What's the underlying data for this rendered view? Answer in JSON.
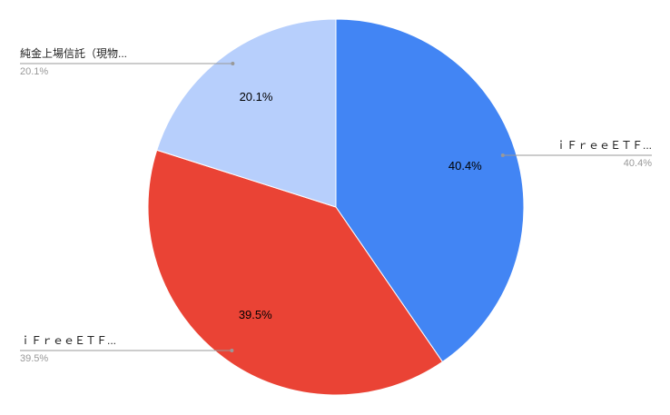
{
  "chart_data": {
    "type": "pie",
    "categories": [
      "ｉＦｒｅｅＥＴＦ...",
      "ｉＦｒｅｅＥＴＦ...",
      "純金上場信託（現物..."
    ],
    "values": [
      40.4,
      39.5,
      20.1
    ],
    "value_labels": [
      "40.4%",
      "39.5%",
      "20.1%"
    ],
    "colors": [
      "#4285f4",
      "#ea4335",
      "#b7cffc"
    ]
  }
}
